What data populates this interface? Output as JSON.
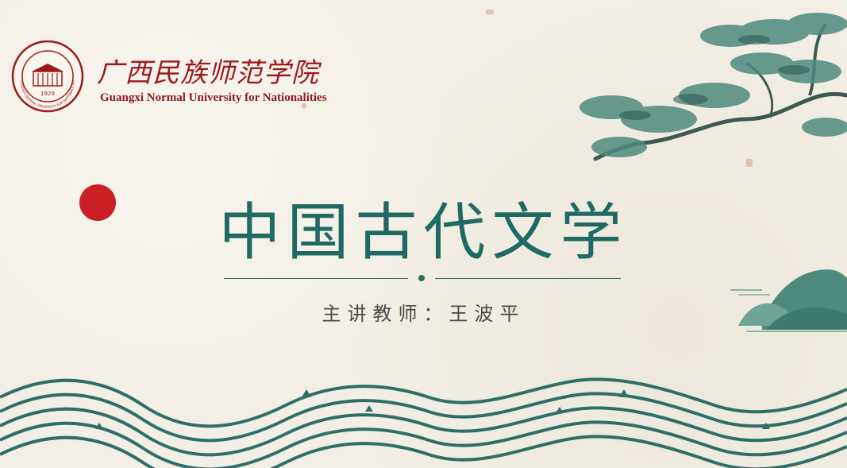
{
  "logo": {
    "cn_name": "广西民族师范学院",
    "en_name": "Guangxi Normal University for Nationalities",
    "seal_year": "1929",
    "seal_text": "GUANGXI NORMAL UNIVERSITY FOR NATIONALITIES"
  },
  "slide": {
    "title": "中国古代文学",
    "subtitle": "主讲教师：王波平"
  },
  "colors": {
    "brand_red": "#9b1b1b",
    "accent_red": "#cc1f24",
    "teal": "#1f6b64",
    "paper": "#f3efe6"
  }
}
